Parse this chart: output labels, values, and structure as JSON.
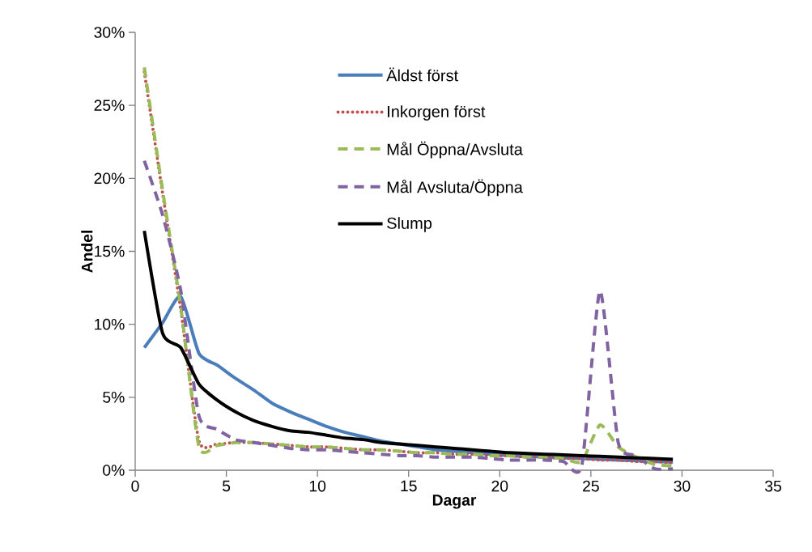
{
  "chart_data": {
    "type": "line",
    "xlabel": "Dagar",
    "ylabel": "Andel",
    "x": [
      0.5,
      1.5,
      2.5,
      3.5,
      4.5,
      5.5,
      6.5,
      7.5,
      8.5,
      9.5,
      10.5,
      11.5,
      12.5,
      13.5,
      14.5,
      15.5,
      16.5,
      17.5,
      18.5,
      19.5,
      20.5,
      21.5,
      22.5,
      23.5,
      24.5,
      25.5,
      26.5,
      27.5,
      28.5,
      29.5
    ],
    "xlim": [
      0,
      35
    ],
    "xticks": [
      0,
      5,
      10,
      15,
      20,
      25,
      30,
      35
    ],
    "ylim": [
      0,
      30
    ],
    "yticks": [
      {
        "value": 0,
        "label": "0%"
      },
      {
        "value": 5,
        "label": "5%"
      },
      {
        "value": 10,
        "label": "10%"
      },
      {
        "value": 15,
        "label": "15%"
      },
      {
        "value": 20,
        "label": "20%"
      },
      {
        "value": 25,
        "label": "25%"
      },
      {
        "value": 30,
        "label": "30%"
      }
    ],
    "grid": false,
    "legend": "top",
    "marker": "none",
    "series": [
      {
        "name": "Äldst först",
        "color": "#4a7ebb",
        "line_style": "solid",
        "values": [
          8.4,
          10.1,
          11.9,
          8.0,
          7.2,
          6.3,
          5.5,
          4.6,
          4.0,
          3.5,
          3.0,
          2.6,
          2.3,
          2.0,
          1.8,
          1.6,
          1.4,
          1.3,
          1.2,
          1.1,
          1.0,
          0.95,
          0.9,
          0.85,
          0.8,
          0.75,
          0.7,
          0.65,
          0.6,
          0.55
        ]
      },
      {
        "name": "Inkorgen först",
        "color": "#c0504d",
        "line_style": "dotted",
        "values": [
          27.3,
          19.0,
          11.0,
          2.0,
          1.8,
          1.9,
          1.9,
          1.8,
          1.7,
          1.6,
          1.6,
          1.5,
          1.4,
          1.4,
          1.3,
          1.2,
          1.2,
          1.1,
          1.1,
          1.0,
          1.0,
          0.9,
          0.9,
          0.8,
          0.8,
          0.7,
          0.7,
          0.6,
          0.6,
          0.5
        ]
      },
      {
        "name": "Mål Öppna/Avsluta",
        "color": "#9bbb59",
        "line_style": "dashed",
        "values": [
          27.6,
          19.2,
          11.2,
          1.6,
          1.7,
          1.9,
          1.9,
          1.8,
          1.7,
          1.6,
          1.6,
          1.5,
          1.4,
          1.4,
          1.3,
          1.2,
          1.2,
          1.1,
          1.1,
          1.0,
          1.0,
          0.9,
          0.9,
          0.8,
          0.6,
          3.1,
          1.6,
          0.9,
          0.4,
          0.3
        ]
      },
      {
        "name": "Mål Avsluta/Öppna",
        "color": "#8064a2",
        "line_style": "dashed",
        "values": [
          21.2,
          17.5,
          12.3,
          3.7,
          2.8,
          2.1,
          1.9,
          1.7,
          1.5,
          1.4,
          1.4,
          1.3,
          1.2,
          1.1,
          1.0,
          1.0,
          0.9,
          0.9,
          0.9,
          0.8,
          0.7,
          0.7,
          0.7,
          0.6,
          0.3,
          12.3,
          1.9,
          1.0,
          0.1,
          0.1
        ]
      },
      {
        "name": "Slump",
        "color": "#000000",
        "line_style": "solid",
        "values": [
          16.4,
          9.4,
          8.4,
          5.9,
          4.8,
          4.0,
          3.4,
          3.0,
          2.7,
          2.6,
          2.4,
          2.2,
          2.1,
          1.9,
          1.8,
          1.7,
          1.6,
          1.5,
          1.4,
          1.3,
          1.2,
          1.15,
          1.1,
          1.05,
          1.0,
          0.95,
          0.9,
          0.85,
          0.8,
          0.75
        ]
      }
    ]
  }
}
